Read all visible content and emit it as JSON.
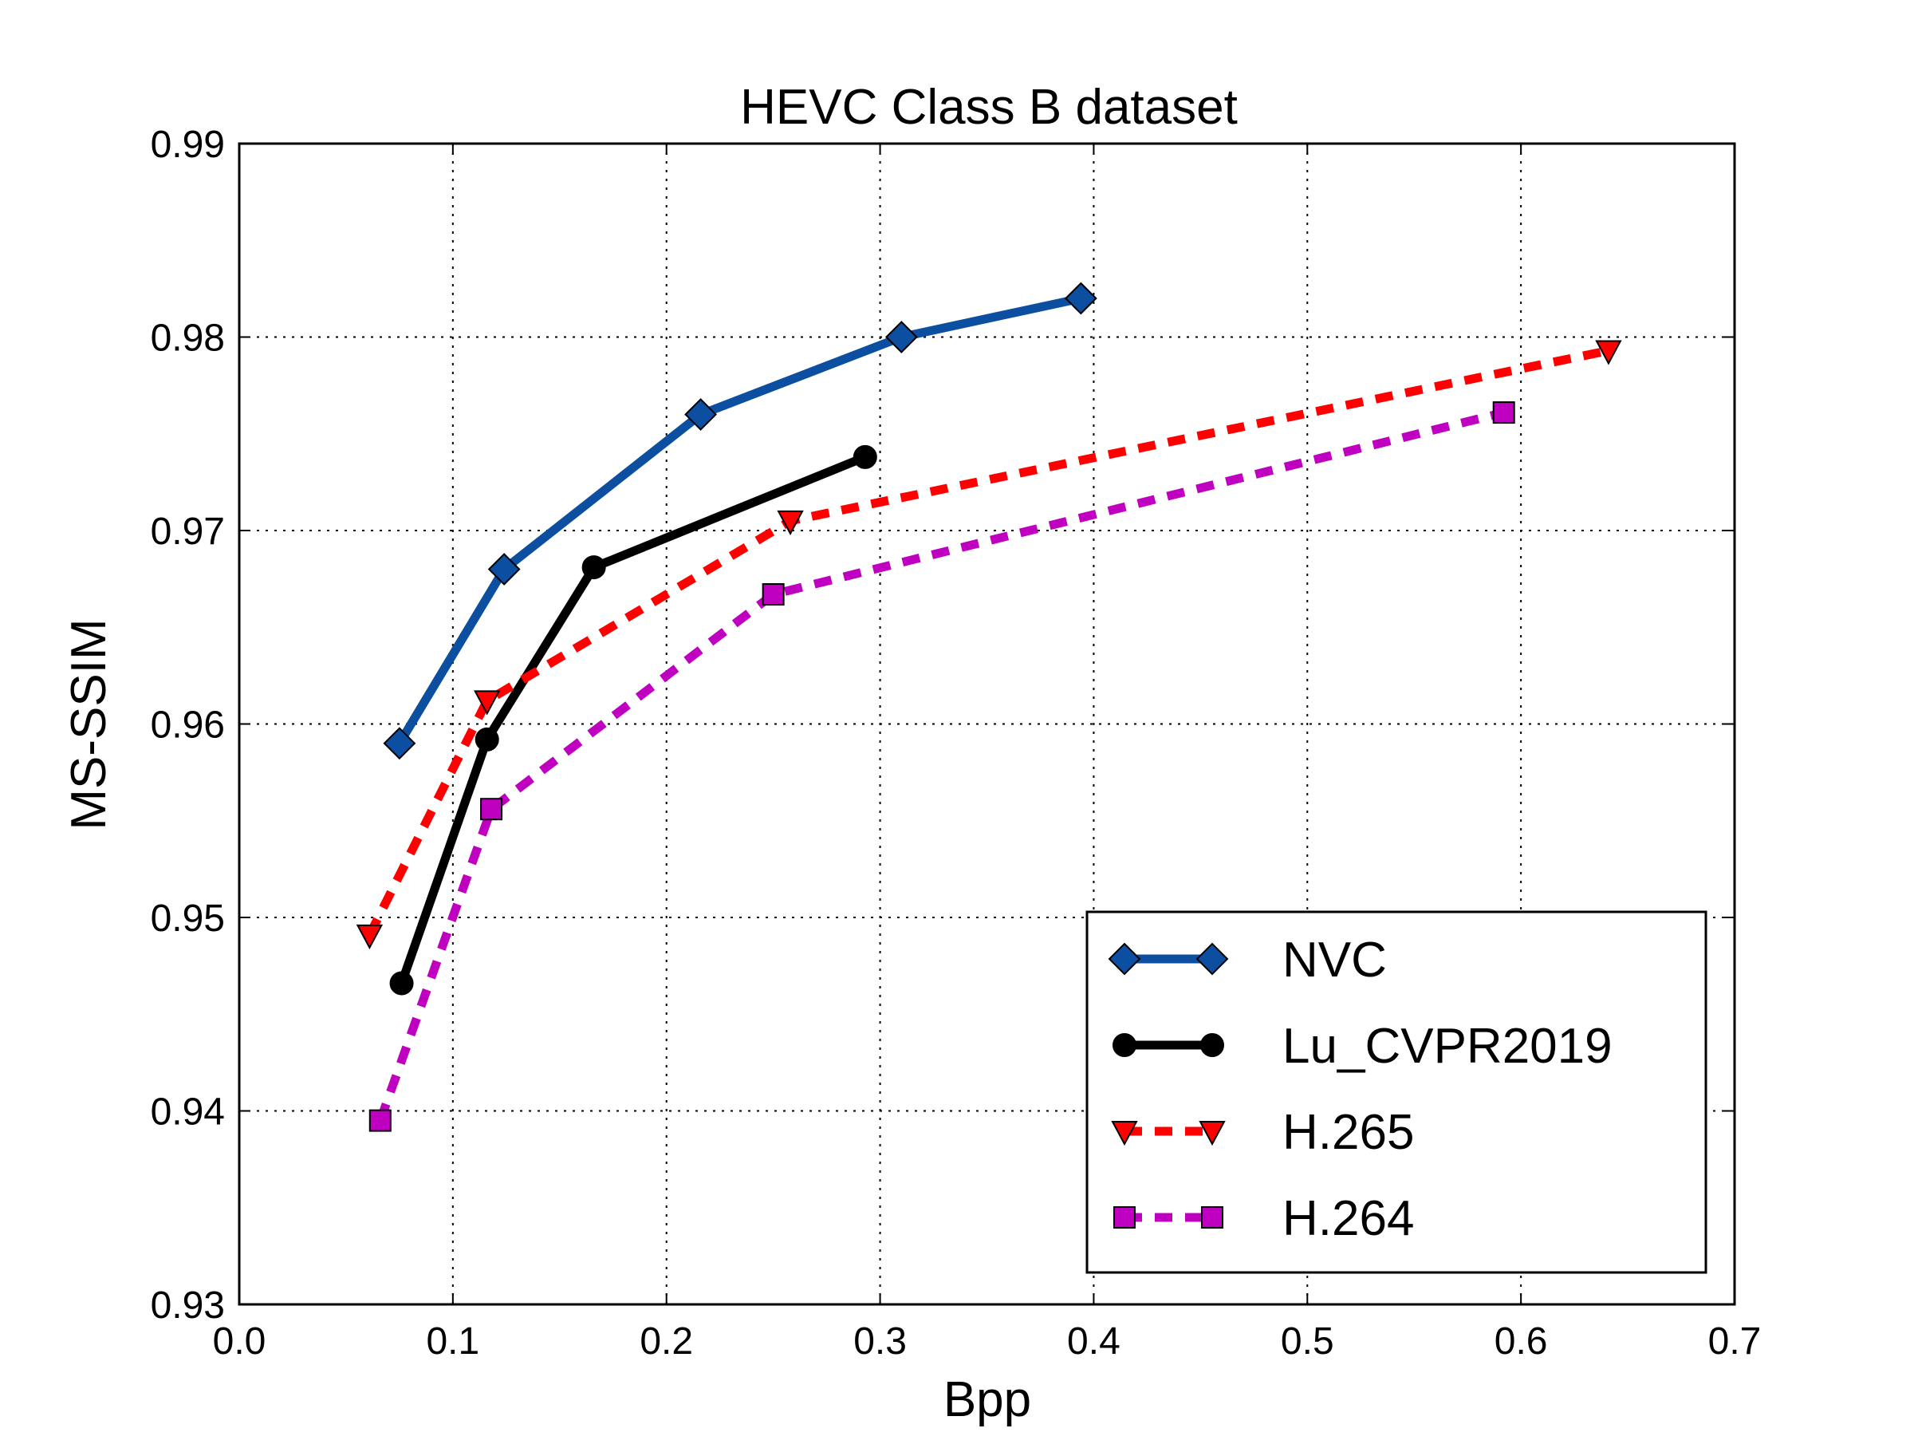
{
  "chart_data": {
    "type": "line",
    "title": "HEVC Class B dataset",
    "xlabel": "Bpp",
    "ylabel": "MS-SSIM",
    "xlim": [
      0.0,
      0.7
    ],
    "ylim": [
      0.93,
      0.99
    ],
    "xticks": [
      0.0,
      0.1,
      0.2,
      0.3,
      0.4,
      0.5,
      0.6,
      0.7
    ],
    "xtick_labels": [
      "0.0",
      "0.1",
      "0.2",
      "0.3",
      "0.4",
      "0.5",
      "0.6",
      "0.7"
    ],
    "yticks": [
      0.93,
      0.94,
      0.95,
      0.96,
      0.97,
      0.98,
      0.99
    ],
    "ytick_labels": [
      "0.93",
      "0.94",
      "0.95",
      "0.96",
      "0.97",
      "0.98",
      "0.99"
    ],
    "grid": true,
    "legend_position": "lower-right",
    "series": [
      {
        "name": "NVC",
        "color": "#0c4fa0",
        "marker": "diamond",
        "line_style": "solid",
        "x": [
          0.075,
          0.124,
          0.216,
          0.31,
          0.394
        ],
        "y": [
          0.959,
          0.968,
          0.976,
          0.98,
          0.982
        ]
      },
      {
        "name": "Lu_CVPR2019",
        "color": "#000000",
        "marker": "circle",
        "line_style": "solid",
        "x": [
          0.076,
          0.116,
          0.166,
          0.293
        ],
        "y": [
          0.9466,
          0.9592,
          0.9681,
          0.9738
        ]
      },
      {
        "name": "H.265",
        "color": "#ff0000",
        "marker": "triangle-down",
        "line_style": "dashed",
        "x": [
          0.061,
          0.116,
          0.258,
          0.641
        ],
        "y": [
          0.9491,
          0.9612,
          0.9705,
          0.9793
        ]
      },
      {
        "name": "H.264",
        "color": "#c000c0",
        "marker": "square",
        "line_style": "dashed",
        "x": [
          0.066,
          0.118,
          0.25,
          0.592
        ],
        "y": [
          0.9395,
          0.9556,
          0.9667,
          0.9761
        ]
      }
    ]
  }
}
